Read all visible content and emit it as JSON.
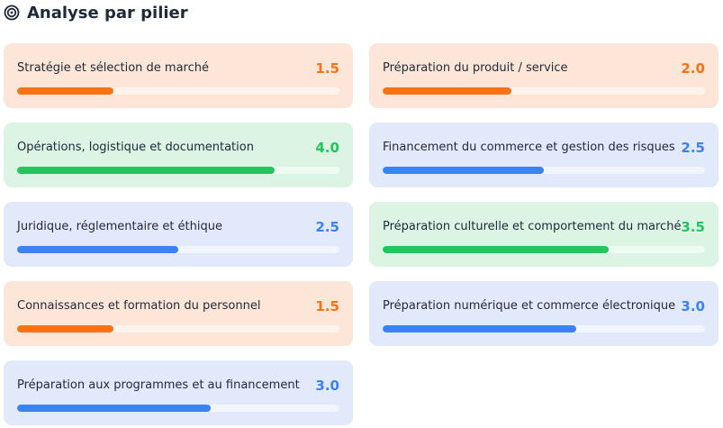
{
  "header": {
    "title": "Analyse par pilier"
  },
  "scale": [
    0,
    5
  ],
  "pillars": [
    {
      "name": "Stratégie et sélection de marché",
      "score": 1.5,
      "score_label": "1.5",
      "tone": "orange"
    },
    {
      "name": "Préparation du produit / service",
      "score": 2,
      "score_label": "2.0",
      "tone": "orange"
    },
    {
      "name": "Opérations, logistique et documentation",
      "score": 4,
      "score_label": "4.0",
      "tone": "green"
    },
    {
      "name": "Financement du commerce et gestion des risques",
      "score": 2.5,
      "score_label": "2.5",
      "tone": "blue"
    },
    {
      "name": "Juridique, réglementaire et éthique",
      "score": 2.5,
      "score_label": "2.5",
      "tone": "blue"
    },
    {
      "name": "Préparation culturelle et comportement du marché",
      "score": 3.5,
      "score_label": "3.5",
      "tone": "green"
    },
    {
      "name": "Connaissances et formation du personnel",
      "score": 1.5,
      "score_label": "1.5",
      "tone": "orange"
    },
    {
      "name": "Préparation numérique et commerce électronique",
      "score": 3,
      "score_label": "3.0",
      "tone": "blue"
    },
    {
      "name": "Préparation aux programmes et au financement",
      "score": 3,
      "score_label": "3.0",
      "tone": "blue"
    }
  ]
}
